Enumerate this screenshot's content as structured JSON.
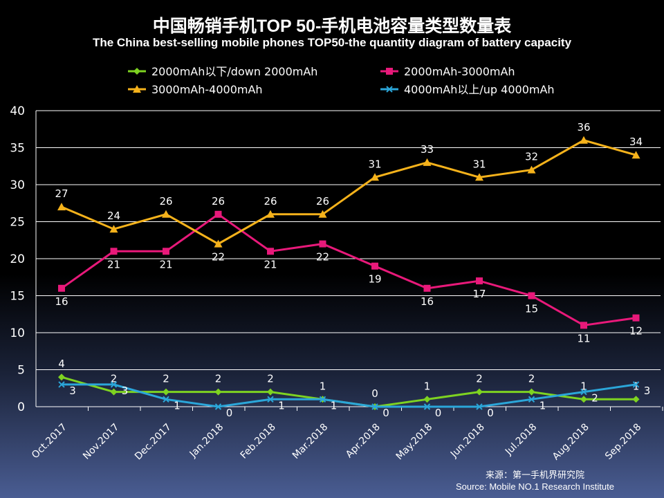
{
  "chart_data": {
    "type": "line",
    "title": "中国畅销手机TOP 50-手机电池容量类型数量表",
    "subtitle": "The China best-selling mobile phones TOP50-the quantity diagram of battery capacity",
    "xlabel": "",
    "ylabel": "",
    "categories": [
      "Oct.2017",
      "Nov.2017",
      "Dec.2017",
      "Jan.2018",
      "Feb.2018",
      "Mar.2018",
      "Apr.2018",
      "May.2018",
      "Jun.2018",
      "Jul.2018",
      "Aug.2018",
      "Sep.2018"
    ],
    "ylim": [
      0,
      40
    ],
    "yticks": [
      0,
      5,
      10,
      15,
      20,
      25,
      30,
      35,
      40
    ],
    "grid": true,
    "legend_position": "top",
    "series": [
      {
        "name": "2000mAh以下/down 2000mAh",
        "color": "#7ed321",
        "marker": "diamond",
        "values": [
          4,
          2,
          2,
          2,
          2,
          1,
          0,
          1,
          2,
          2,
          1,
          1
        ]
      },
      {
        "name": "2000mAh-3000mAh",
        "color": "#e8197a",
        "marker": "square",
        "values": [
          16,
          21,
          21,
          26,
          21,
          22,
          19,
          16,
          17,
          15,
          11,
          12
        ]
      },
      {
        "name": "3000mAh-4000mAh",
        "color": "#f5b21b",
        "marker": "triangle",
        "values": [
          27,
          24,
          26,
          22,
          26,
          26,
          31,
          33,
          31,
          32,
          36,
          34
        ]
      },
      {
        "name": "4000mAh以上/up 4000mAh",
        "color": "#2ba6d9",
        "marker": "x",
        "values": [
          3,
          3,
          1,
          0,
          1,
          1,
          0,
          0,
          0,
          1,
          2,
          3
        ]
      }
    ]
  },
  "source": {
    "cn": "来源：第一手机界研究院",
    "en": "Source: Mobile NO.1 Research Institute"
  }
}
